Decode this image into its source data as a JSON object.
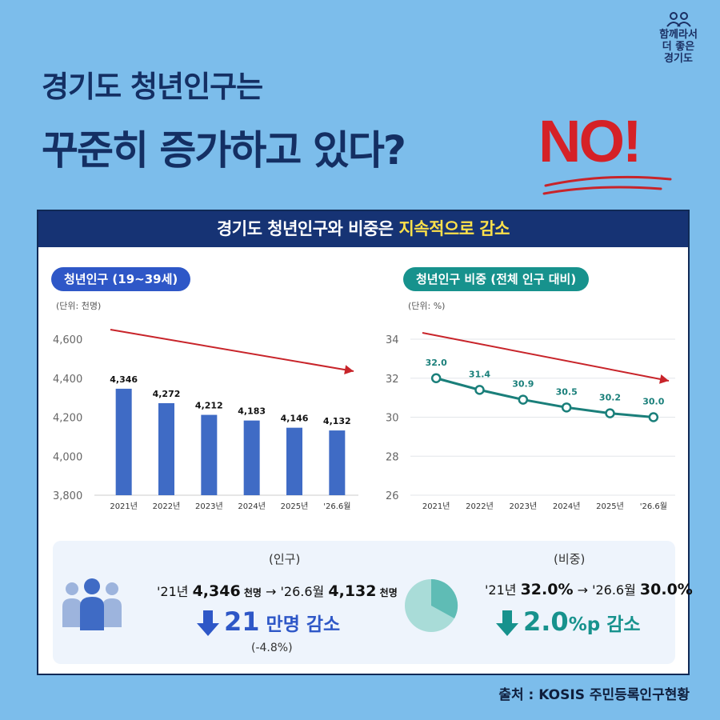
{
  "logo": {
    "line1": "함께라서",
    "line2": "더 좋은",
    "line3": "경기도"
  },
  "headline": {
    "line1": "경기도 청년인구는",
    "line2": "꾸준히 증가하고 있다?",
    "no": "NO!"
  },
  "banner": {
    "prefix": "경기도 청년인구와 비중은 ",
    "highlight": "지속적으로 감소"
  },
  "left_chart": {
    "pill": "청년인구 (19~39세)",
    "unit": "(단위: 천명)"
  },
  "right_chart": {
    "pill": "청년인구 비중 (전체 인구 대비)",
    "unit": "(단위: %)"
  },
  "summary": {
    "left": {
      "tag": "(인구)",
      "from_prefix": "'21년 ",
      "from_value": "4,346",
      "from_unit": " 천명",
      "arrow": " → ",
      "to_prefix": "'26.6월 ",
      "to_value": "4,132",
      "to_unit": " 천명",
      "down_value": "21",
      "down_unit": " 만명 감소",
      "pct": "(-4.8%)"
    },
    "right": {
      "tag": "(비중)",
      "from_prefix": "'21년 ",
      "from_value": "32.0%",
      "arrow": " → ",
      "to_prefix": "'26.6월 ",
      "to_value": "30.0%",
      "down_value": "2.0",
      "down_unit": "%p 감소"
    }
  },
  "source": "출처 : KOSIS 주민등록인구현황",
  "colors": {
    "bar": "#3f6bc5",
    "line": "#1a7f7a",
    "trend_arrow": "#c8242a",
    "teal": "#17928d",
    "navy": "#163374"
  },
  "chart_data": [
    {
      "type": "bar",
      "title": "청년인구 (19~39세)",
      "categories": [
        "2021년",
        "2022년",
        "2023년",
        "2024년",
        "2025년",
        "'26.6월"
      ],
      "values": [
        4346,
        4272,
        4212,
        4183,
        4146,
        4132
      ],
      "data_labels": [
        "4,346",
        "4,272",
        "4,212",
        "4,183",
        "4,146",
        "4,132"
      ],
      "yticks": [
        "4,600",
        "4,400",
        "4,200",
        "4,000",
        "3,800"
      ],
      "ylim": [
        3800,
        4600
      ],
      "ylabel": "(단위: 천명)",
      "grid": false,
      "trend_arrow": true
    },
    {
      "type": "line",
      "title": "청년인구 비중 (전체 인구 대비)",
      "categories": [
        "2021년",
        "2022년",
        "2023년",
        "2024년",
        "2025년",
        "'26.6월"
      ],
      "values": [
        32.0,
        31.4,
        30.9,
        30.5,
        30.2,
        30.0
      ],
      "data_labels": [
        "32.0",
        "31.4",
        "30.9",
        "30.5",
        "30.2",
        "30.0"
      ],
      "yticks": [
        "34",
        "32",
        "30",
        "28",
        "26"
      ],
      "ylim": [
        26,
        34
      ],
      "ylabel": "(단위: %)",
      "grid": true,
      "trend_arrow": true
    }
  ]
}
